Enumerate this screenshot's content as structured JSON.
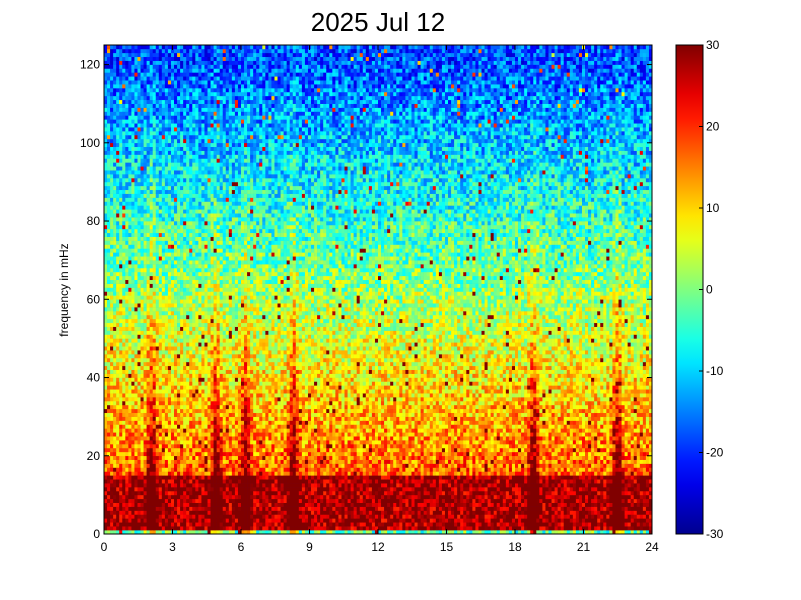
{
  "chart_data": {
    "type": "heatmap",
    "title": "2025 Jul 12",
    "xlabel": "",
    "ylabel": "frequency in mHz",
    "x_ticks": [
      "0",
      "3",
      "6",
      "9",
      "12",
      "15",
      "18",
      "21",
      "24"
    ],
    "y_ticks": [
      "0",
      "20",
      "40",
      "60",
      "80",
      "100",
      "120"
    ],
    "xlim": [
      0,
      24
    ],
    "ylim": [
      0,
      125
    ],
    "colorbar": {
      "ticks": [
        "30",
        "20",
        "10",
        "0",
        "-10",
        "-20",
        "-30"
      ],
      "range": [
        -30,
        30
      ],
      "colormap": "jet"
    },
    "colormap_stops": [
      "#00008f",
      "#0000ff",
      "#00ffff",
      "#ffff00",
      "#ff0000",
      "#800000"
    ],
    "grid": false,
    "description_of_pattern": {
      "low_frequency_band_mhz": [
        0,
        15
      ],
      "low_band_level_db": 28,
      "high_frequency_level_db": -18,
      "vertical_bursts_hours": [
        2.1,
        4.9,
        6.2,
        8.3,
        18.8,
        22.5
      ]
    }
  }
}
